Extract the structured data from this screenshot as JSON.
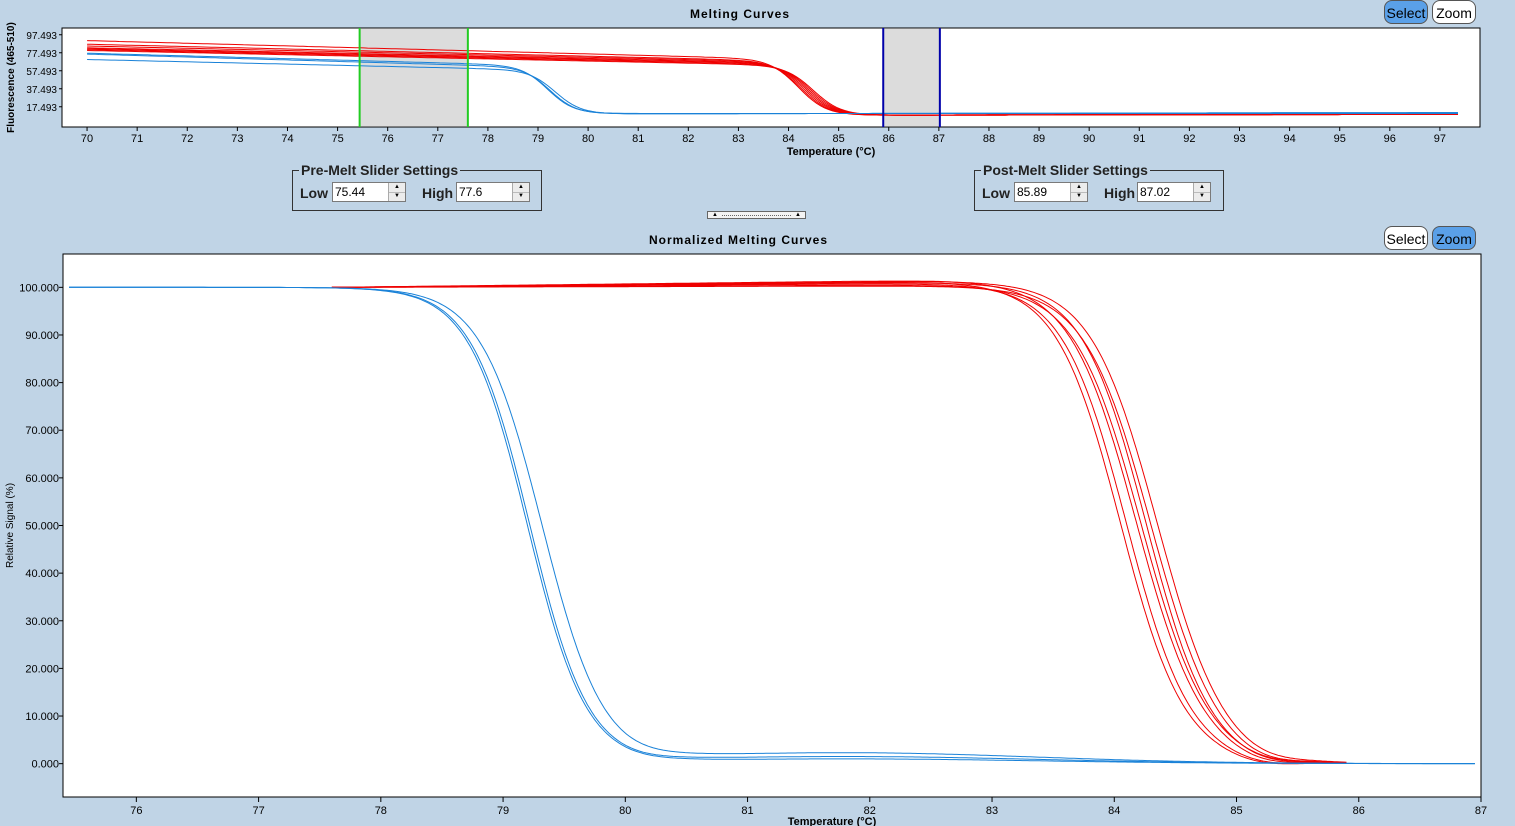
{
  "top_panel": {
    "title": "Melting Curves",
    "select_label": "Select",
    "zoom_label": "Zoom",
    "active_mode": "Select"
  },
  "bottom_panel": {
    "title": "Normalized Melting Curves",
    "select_label": "Select",
    "zoom_label": "Zoom",
    "active_mode": "Zoom"
  },
  "pre_melt": {
    "legend": "Pre-Melt Slider Settings",
    "low_label": "Low",
    "low_value": "75.44",
    "high_label": "High",
    "high_value": "77.6"
  },
  "post_melt": {
    "legend": "Post-Melt Slider Settings",
    "low_label": "Low",
    "low_value": "85.89",
    "high_label": "High",
    "high_value": "87.02"
  },
  "colors": {
    "red_series": "#ee0000",
    "blue_series": "#1a82d8",
    "pre_slider": "#22cc22",
    "post_slider": "#0000aa",
    "slider_band": "#dcdcdc"
  },
  "chart_data": [
    {
      "type": "line",
      "title": "Melting Curves",
      "xlabel": "Temperature (°C)",
      "ylabel": "Fluorescence (465-510)",
      "xlim": [
        69.5,
        97.8
      ],
      "ylim": [
        -5,
        105
      ],
      "xticks": [
        "70",
        "71",
        "72",
        "73",
        "74",
        "75",
        "76",
        "77",
        "78",
        "79",
        "80",
        "81",
        "82",
        "83",
        "84",
        "85",
        "86",
        "87",
        "88",
        "89",
        "90",
        "91",
        "92",
        "93",
        "94",
        "95",
        "96",
        "97"
      ],
      "yticks": [
        "17.493",
        "37.493",
        "57.493",
        "77.493",
        "97.493"
      ],
      "ytick_values": [
        17.493,
        37.493,
        57.493,
        77.493,
        97.493
      ],
      "pre_melt_range": [
        75.44,
        77.6
      ],
      "post_melt_range": [
        85.89,
        87.02
      ],
      "series": [
        {
          "group": "red",
          "tm": 84.2,
          "pre_start": 91,
          "pre_end": 70,
          "post": 8,
          "post_end": 9
        },
        {
          "group": "red",
          "tm": 84.25,
          "pre_start": 87,
          "pre_end": 68,
          "post": 8,
          "post_end": 9
        },
        {
          "group": "red",
          "tm": 84.3,
          "pre_start": 85,
          "pre_end": 67,
          "post": 8,
          "post_end": 10
        },
        {
          "group": "red",
          "tm": 84.35,
          "pre_start": 83,
          "pre_end": 66,
          "post": 8,
          "post_end": 9
        },
        {
          "group": "red",
          "tm": 84.4,
          "pre_start": 82,
          "pre_end": 65,
          "post": 8,
          "post_end": 10
        },
        {
          "group": "red",
          "tm": 84.45,
          "pre_start": 81,
          "pre_end": 64,
          "post": 8,
          "post_end": 10
        },
        {
          "group": "red",
          "tm": 84.5,
          "pre_start": 80,
          "pre_end": 63,
          "post": 8,
          "post_end": 9
        },
        {
          "group": "blue",
          "tm": 79.2,
          "pre_start": 77,
          "pre_end": 63,
          "post": 10,
          "post_end": 10
        },
        {
          "group": "blue",
          "tm": 79.25,
          "pre_start": 76,
          "pre_end": 61,
          "post": 10,
          "post_end": 11
        },
        {
          "group": "blue",
          "tm": 79.35,
          "pre_start": 70,
          "pre_end": 58,
          "post": 10,
          "post_end": 11
        }
      ]
    },
    {
      "type": "line",
      "title": "Normalized Melting Curves",
      "xlabel": "Temperature (°C)",
      "ylabel": "Relative Signal (%)",
      "xlim": [
        75.4,
        87.0
      ],
      "ylim": [
        -7,
        107
      ],
      "xticks": [
        "76",
        "77",
        "78",
        "79",
        "80",
        "81",
        "82",
        "83",
        "84",
        "85",
        "86",
        "87"
      ],
      "yticks": [
        "0.000",
        "10.000",
        "20.000",
        "30.000",
        "40.000",
        "50.000",
        "60.000",
        "70.000",
        "80.000",
        "90.000",
        "100.000"
      ],
      "ytick_values": [
        0,
        10,
        20,
        30,
        40,
        50,
        60,
        70,
        80,
        90,
        100
      ],
      "series": [
        {
          "group": "red",
          "tm": 84.05,
          "w": 0.26,
          "tail": -0.8,
          "bump": 1.2
        },
        {
          "group": "red",
          "tm": 84.1,
          "w": 0.26,
          "tail": -0.8,
          "bump": 0.8
        },
        {
          "group": "red",
          "tm": 84.18,
          "w": 0.27,
          "tail": -1.0,
          "bump": 1.5
        },
        {
          "group": "red",
          "tm": 84.22,
          "w": 0.27,
          "tail": -0.7,
          "bump": 0.5
        },
        {
          "group": "red",
          "tm": 84.26,
          "w": 0.26,
          "tail": -0.9,
          "bump": 1.0
        },
        {
          "group": "red",
          "tm": 84.3,
          "w": 0.27,
          "tail": -1.1,
          "bump": 0.3
        },
        {
          "group": "red",
          "tm": 84.35,
          "w": 0.27,
          "tail": -0.9,
          "bump": 1.3
        },
        {
          "group": "blue",
          "tm": 79.2,
          "w": 0.24,
          "tail": 1.0,
          "bump": 0
        },
        {
          "group": "blue",
          "tm": 79.22,
          "w": 0.24,
          "tail": 1.5,
          "bump": 0
        },
        {
          "group": "blue",
          "tm": 79.32,
          "w": 0.25,
          "tail": 2.3,
          "bump": 0
        }
      ]
    }
  ]
}
